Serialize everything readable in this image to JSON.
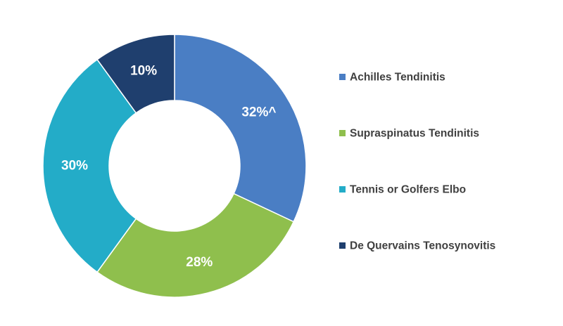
{
  "chart_data": {
    "type": "pie",
    "variant": "donut",
    "legend_position": "right",
    "slices": [
      {
        "category": "Achilles Tendinitis",
        "value": 32,
        "label": "32%^",
        "color": "#4a7ec4"
      },
      {
        "category": "Supraspinatus Tendinitis",
        "value": 28,
        "label": "28%",
        "color": "#8fbf4d"
      },
      {
        "category": "Tennis or Golfers Elbo",
        "value": 30,
        "label": "30%",
        "color": "#23acc8"
      },
      {
        "category": "De Quervains Tenosynovitis",
        "value": 10,
        "label": "10%",
        "color": "#1f3f6e"
      }
    ]
  }
}
